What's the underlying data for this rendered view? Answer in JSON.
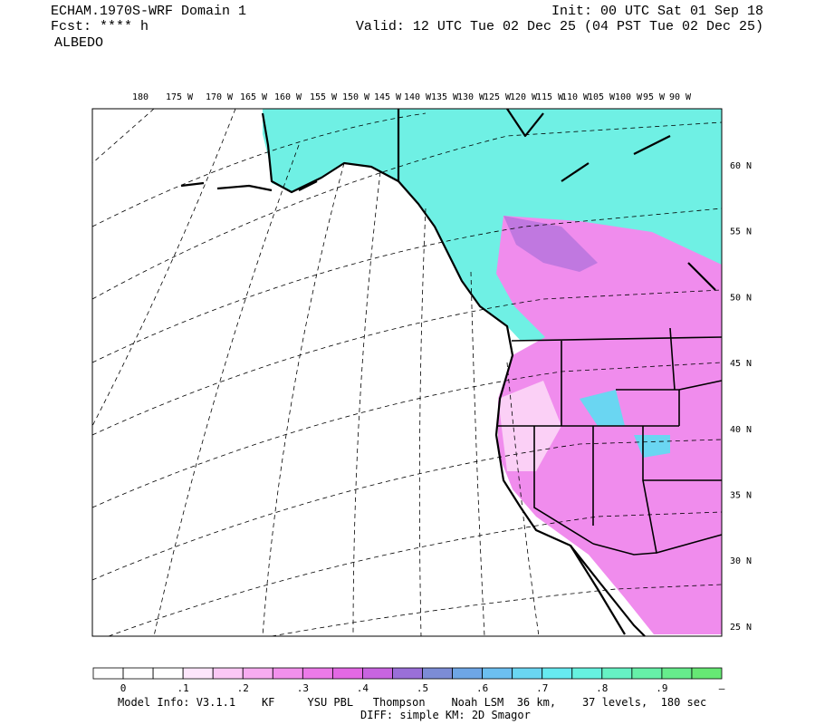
{
  "header": {
    "model": "ECHAM.1970S-WRF Domain 1",
    "fcst": "Fcst: **** h",
    "field": "ALBEDO",
    "init": "Init: 00 UTC Sat 01 Sep 18",
    "valid": "Valid: 12 UTC Tue 02 Dec 25 (04 PST Tue 02 Dec 25)"
  },
  "map": {
    "longitude_labels": [
      "180",
      "175 W",
      "170 W",
      "165 W",
      "160 W",
      "155 W",
      "150 W",
      "145 W",
      "140 W",
      "135 W",
      "130 W",
      "125 W",
      "120 W",
      "115 W",
      "110 W",
      "105 W",
      "100 W",
      "95 W",
      "90 W"
    ],
    "latitude_labels": [
      "60 N",
      "55 N",
      "50 N",
      "45 N",
      "40 N",
      "35 N",
      "30 N",
      "25 N"
    ]
  },
  "colorbar": {
    "colors": [
      "#ffffff",
      "#ffffff",
      "#ffffff",
      "#fde6fb",
      "#fbc8f5",
      "#f7acf0",
      "#f290ec",
      "#ec7ae8",
      "#e368e4",
      "#c864e0",
      "#9a6fd8",
      "#7c8cd6",
      "#6ea6e6",
      "#6cbff0",
      "#6ad6f2",
      "#66eaf0",
      "#66f2e0",
      "#66f2c4",
      "#66f0a8",
      "#66ec8c",
      "#66e874"
    ],
    "labels": [
      "0",
      ".1",
      ".2",
      ".3",
      ".4",
      ".5",
      ".6",
      ".7",
      ".8",
      ".9",
      "—"
    ]
  },
  "footer": {
    "line1": "Model Info: V3.1.1    KF     YSU PBL   Thompson    Noah LSM  36 km,    37 levels,  180 sec",
    "line2": "DIFF: simple KM: 2D Smagor"
  }
}
